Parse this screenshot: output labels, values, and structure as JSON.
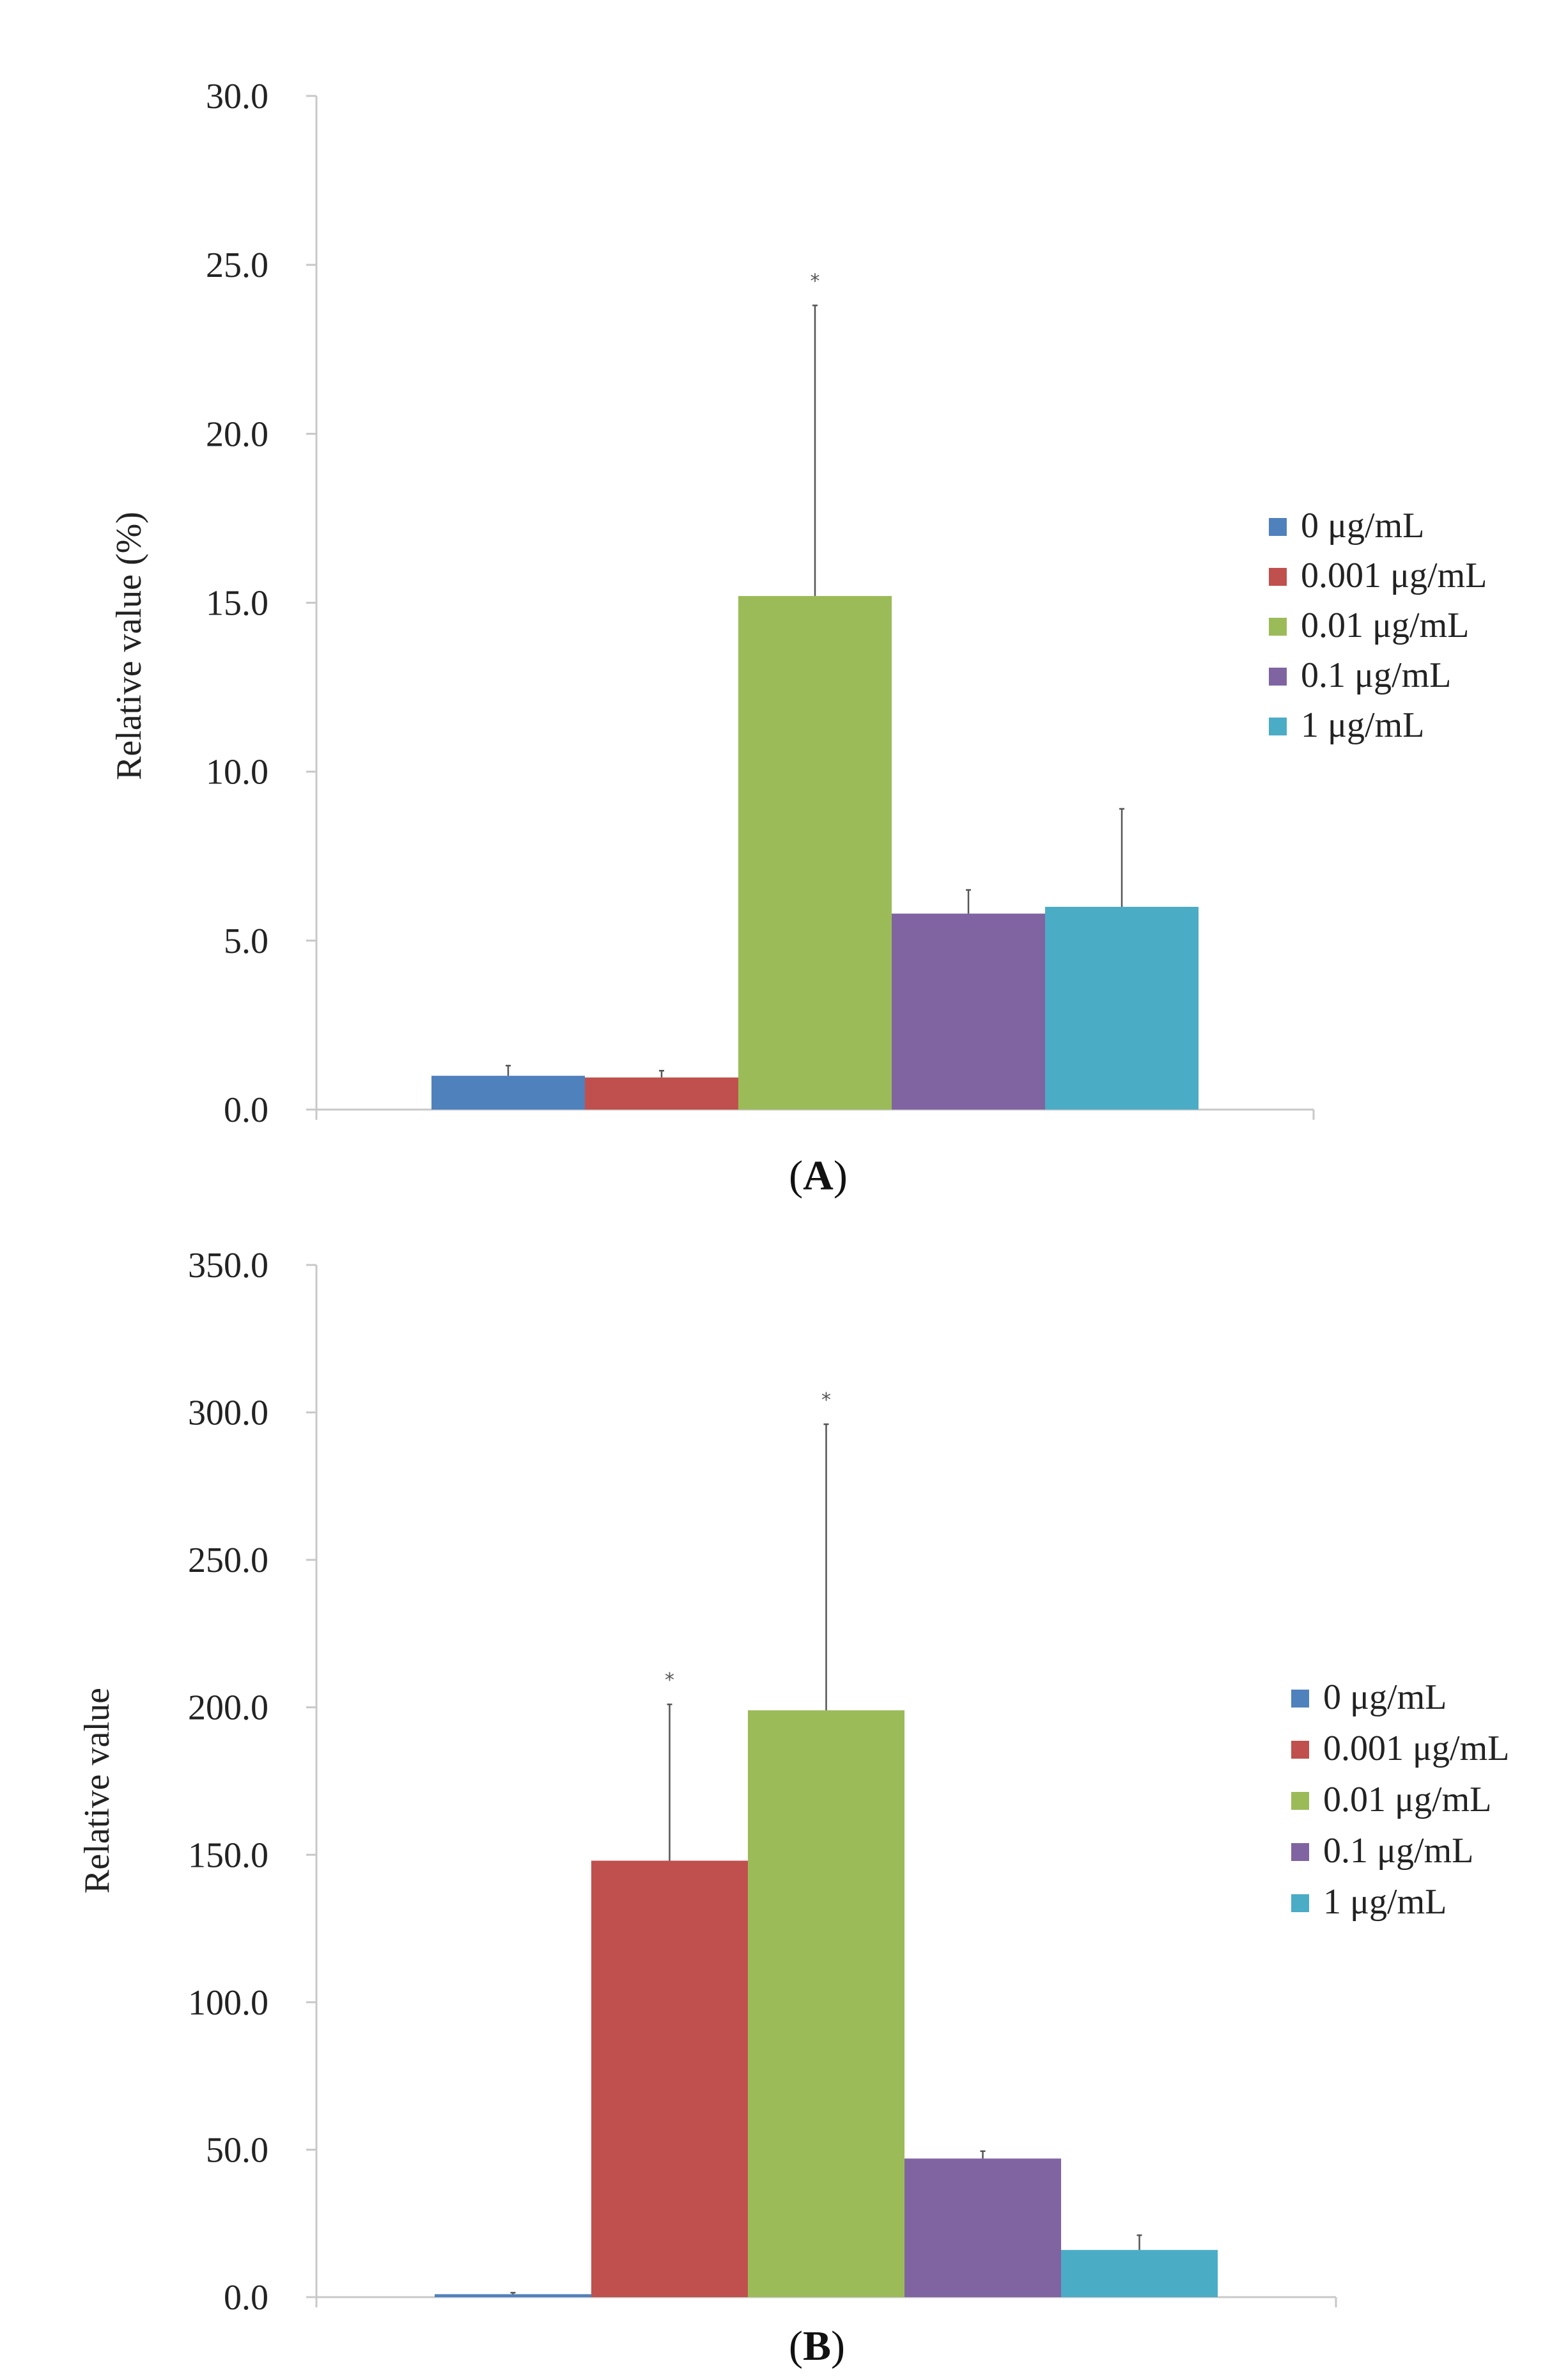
{
  "chart_data": [
    {
      "type": "bar",
      "panel_label": "A",
      "title": "",
      "xlabel": "",
      "ylabel": "Relative value (%)",
      "ylim": [
        0,
        30
      ],
      "yticks": [
        "0.0",
        "5.0",
        "10.0",
        "15.0",
        "20.0",
        "25.0",
        "30.0"
      ],
      "grid": false,
      "legend_position": "right",
      "series": [
        {
          "name": "0 μg/mL",
          "color": "#4F81BD",
          "value": 1.0,
          "error": 0.3,
          "significant": false
        },
        {
          "name": "0.001 μg/mL",
          "color": "#C0504D",
          "value": 0.95,
          "error": 0.2,
          "significant": false
        },
        {
          "name": "0.01 μg/mL",
          "color": "#9BBB59",
          "value": 15.2,
          "error": 8.6,
          "significant": true
        },
        {
          "name": "0.1 μg/mL",
          "color": "#8064A2",
          "value": 5.8,
          "error": 0.7,
          "significant": false
        },
        {
          "name": "1 μg/mL",
          "color": "#4BACC6",
          "value": 6.0,
          "error": 2.9,
          "significant": false
        }
      ],
      "significance_marker": "*"
    },
    {
      "type": "bar",
      "panel_label": "B",
      "title": "",
      "xlabel": "",
      "ylabel": "Relative value",
      "ylim": [
        0,
        350
      ],
      "yticks": [
        "0.0",
        "50.0",
        "100.0",
        "150.0",
        "200.0",
        "250.0",
        "300.0",
        "350.0"
      ],
      "grid": false,
      "legend_position": "right",
      "series": [
        {
          "name": "0 μg/mL",
          "color": "#4F81BD",
          "value": 1.0,
          "error": 0.5,
          "significant": false
        },
        {
          "name": "0.001 μg/mL",
          "color": "#C0504D",
          "value": 148.0,
          "error": 53.0,
          "significant": true
        },
        {
          "name": "0.01 μg/mL",
          "color": "#9BBB59",
          "value": 199.0,
          "error": 97.0,
          "significant": true
        },
        {
          "name": "0.1 μg/mL",
          "color": "#8064A2",
          "value": 47.0,
          "error": 2.5,
          "significant": false
        },
        {
          "name": "1 μg/mL",
          "color": "#4BACC6",
          "value": 16.0,
          "error": 5.0,
          "significant": false
        }
      ],
      "significance_marker": "*"
    }
  ]
}
